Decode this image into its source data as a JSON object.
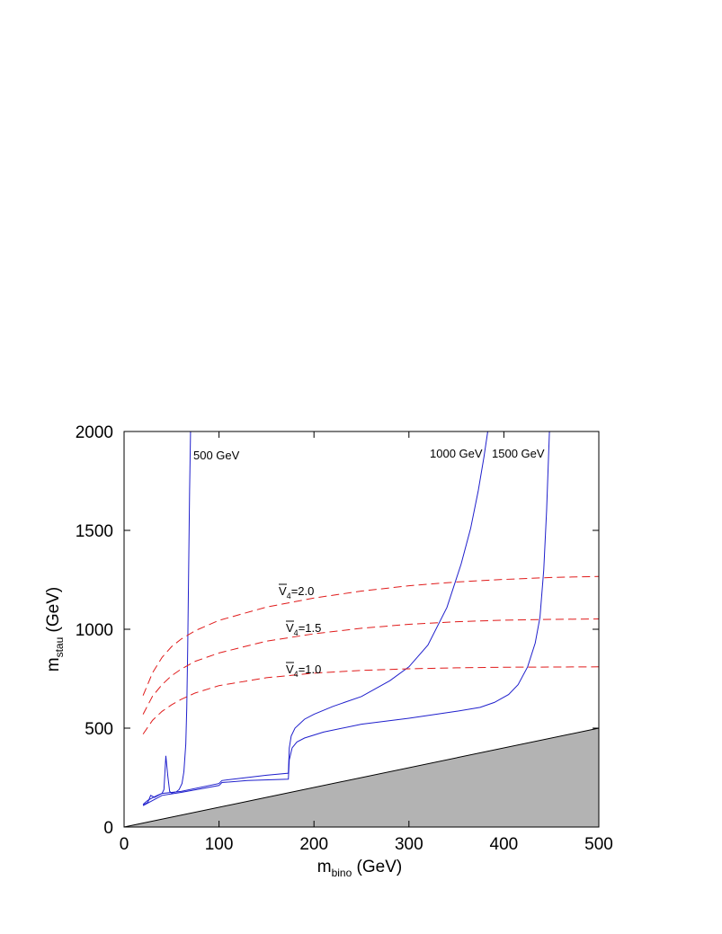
{
  "chart_data": {
    "type": "line",
    "xlabel": {
      "main": "m",
      "sub": "bino",
      "unit": " (GeV)"
    },
    "ylabel": {
      "main": "m",
      "sub": "stau",
      "unit": " (GeV)"
    },
    "xlim": [
      0,
      500
    ],
    "ylim": [
      0,
      2000
    ],
    "x_ticks": [
      "0",
      "100",
      "200",
      "300",
      "500"
    ],
    "x_tick_values": [
      0,
      100,
      200,
      300,
      500
    ],
    "x_ticks_extra": {
      "label": "400",
      "value": 400
    },
    "y_ticks": [
      "0",
      "500",
      "1000",
      "1500",
      "2000"
    ],
    "y_tick_values": [
      0,
      500,
      1000,
      1500,
      2000
    ],
    "grid": false,
    "excluded_region": {
      "description": "shaded region below m_stau = m_bino",
      "color": "#b3b3b3",
      "boundary": [
        [
          0,
          0
        ],
        [
          500,
          500
        ]
      ]
    },
    "colors": {
      "solid": "#1f1fcc",
      "dashed": "#e01a1a",
      "shade": "#b3b3b3",
      "axis": "#000000"
    },
    "series": [
      {
        "name": "500 GeV",
        "style": "solid",
        "points": [
          [
            20,
            115
          ],
          [
            25,
            135
          ],
          [
            30,
            148
          ],
          [
            35,
            160
          ],
          [
            40,
            170
          ],
          [
            42,
            190
          ],
          [
            44,
            360
          ],
          [
            46,
            260
          ],
          [
            48,
            180
          ],
          [
            50,
            172
          ],
          [
            55,
            178
          ],
          [
            58,
            190
          ],
          [
            61,
            220
          ],
          [
            63,
            280
          ],
          [
            65,
            420
          ],
          [
            66,
            600
          ],
          [
            67,
            900
          ],
          [
            68,
            1300
          ],
          [
            69,
            1700
          ],
          [
            70,
            2000
          ]
        ]
      },
      {
        "name": "1000 GeV",
        "style": "solid",
        "points": [
          [
            20,
            110
          ],
          [
            25,
            125
          ],
          [
            28,
            160
          ],
          [
            32,
            150
          ],
          [
            40,
            170
          ],
          [
            60,
            180
          ],
          [
            100,
            220
          ],
          [
            103,
            235
          ],
          [
            120,
            245
          ],
          [
            150,
            262
          ],
          [
            173,
            272
          ],
          [
            174,
            400
          ],
          [
            176,
            460
          ],
          [
            180,
            500
          ],
          [
            190,
            545
          ],
          [
            200,
            570
          ],
          [
            220,
            610
          ],
          [
            250,
            660
          ],
          [
            280,
            740
          ],
          [
            300,
            810
          ],
          [
            320,
            920
          ],
          [
            340,
            1110
          ],
          [
            355,
            1330
          ],
          [
            365,
            1510
          ],
          [
            373,
            1700
          ],
          [
            379,
            1870
          ],
          [
            383,
            2000
          ]
        ]
      },
      {
        "name": "1500 GeV",
        "style": "solid",
        "points": [
          [
            20,
            108
          ],
          [
            40,
            160
          ],
          [
            60,
            175
          ],
          [
            100,
            210
          ],
          [
            103,
            225
          ],
          [
            130,
            235
          ],
          [
            173,
            242
          ],
          [
            174,
            340
          ],
          [
            177,
            400
          ],
          [
            182,
            430
          ],
          [
            190,
            450
          ],
          [
            210,
            480
          ],
          [
            250,
            520
          ],
          [
            300,
            550
          ],
          [
            350,
            585
          ],
          [
            375,
            605
          ],
          [
            390,
            630
          ],
          [
            405,
            670
          ],
          [
            415,
            720
          ],
          [
            425,
            810
          ],
          [
            433,
            930
          ],
          [
            438,
            1060
          ],
          [
            442,
            1300
          ],
          [
            445,
            1600
          ],
          [
            448,
            2000
          ]
        ]
      },
      {
        "name": "V4=2.0",
        "label_main": "V",
        "label_sub": "4",
        "label_value": "=2.0",
        "style": "dashed",
        "points": [
          [
            20,
            665
          ],
          [
            30,
            780
          ],
          [
            40,
            858
          ],
          [
            50,
            912
          ],
          [
            60,
            950
          ],
          [
            75,
            993
          ],
          [
            100,
            1045
          ],
          [
            150,
            1112
          ],
          [
            200,
            1158
          ],
          [
            250,
            1193
          ],
          [
            300,
            1220
          ],
          [
            350,
            1239
          ],
          [
            400,
            1252
          ],
          [
            450,
            1262
          ],
          [
            500,
            1267
          ]
        ]
      },
      {
        "name": "V4=1.5",
        "label_main": "V",
        "label_sub": "4",
        "label_value": "=1.5",
        "style": "dashed",
        "points": [
          [
            20,
            570
          ],
          [
            30,
            662
          ],
          [
            40,
            720
          ],
          [
            50,
            765
          ],
          [
            60,
            798
          ],
          [
            75,
            838
          ],
          [
            100,
            880
          ],
          [
            150,
            940
          ],
          [
            200,
            977
          ],
          [
            250,
            1005
          ],
          [
            300,
            1025
          ],
          [
            350,
            1038
          ],
          [
            400,
            1046
          ],
          [
            450,
            1050
          ],
          [
            500,
            1052
          ]
        ]
      },
      {
        "name": "V4=1.0",
        "label_main": "V",
        "label_sub": "4",
        "label_value": "=1.0",
        "style": "dashed",
        "points": [
          [
            20,
            470
          ],
          [
            30,
            540
          ],
          [
            40,
            585
          ],
          [
            50,
            618
          ],
          [
            60,
            645
          ],
          [
            75,
            678
          ],
          [
            100,
            715
          ],
          [
            150,
            755
          ],
          [
            200,
            778
          ],
          [
            250,
            792
          ],
          [
            300,
            800
          ],
          [
            350,
            805
          ],
          [
            400,
            808
          ],
          [
            450,
            809
          ],
          [
            500,
            810
          ]
        ]
      }
    ],
    "annotations": [
      "500 GeV",
      "1000 GeV",
      "1500 GeV"
    ]
  }
}
